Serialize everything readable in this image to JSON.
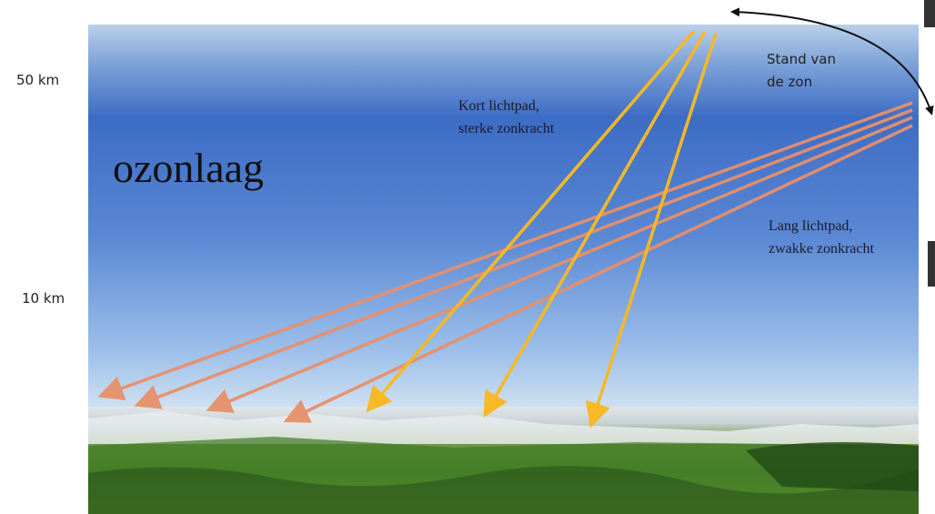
{
  "labels": {
    "altitude_top": "50 km",
    "altitude_low": "10 km",
    "layer": "ozonlaag",
    "short_path": [
      "Kort lichtpad,",
      "sterke zonkracht"
    ],
    "sun_position": [
      "Stand van",
      "de zon"
    ],
    "long_path": [
      "Lang lichtpad,",
      "zwakke zonkracht"
    ]
  }
}
